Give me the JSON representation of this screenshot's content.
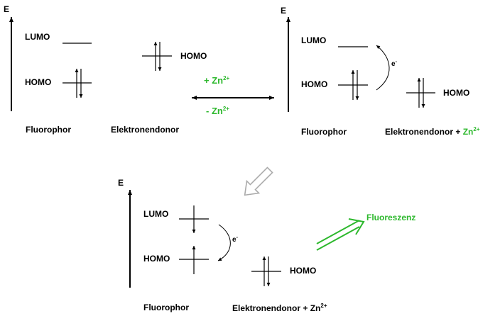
{
  "energy_label": "E",
  "lumo_label": "LUMO",
  "homo_label": "HOMO",
  "fluorophor_label": "Fluorophor",
  "donor_label": "Elektronendonor",
  "donor_plus": "+",
  "zn_label": "Zn",
  "zn_charge": "2+",
  "forward_arrow_label": "+ Zn",
  "reverse_arrow_label": "- Zn",
  "electron_label": "e",
  "electron_charge": "-",
  "fluorescence_label": "Fluoreszenz",
  "colors": {
    "accent_green": "#2db82d",
    "line": "#000000",
    "hollow_arrow": "#aaaaaa"
  }
}
